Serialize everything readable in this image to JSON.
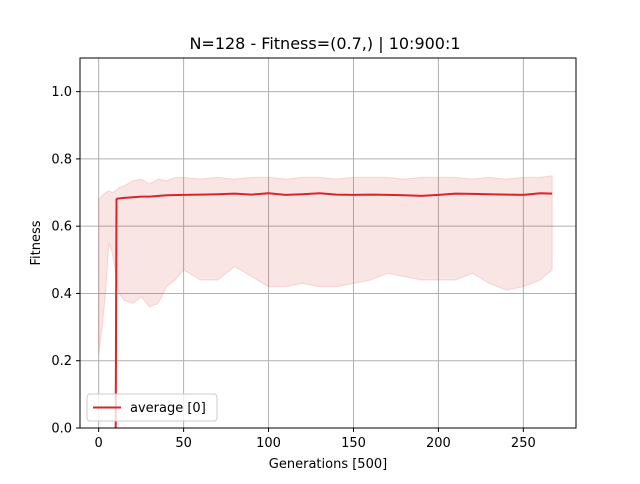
{
  "chart_data": {
    "type": "line",
    "title": "N=128  - Fitness=(0.7,) | 10:900:1",
    "xlabel": "Generations [500]",
    "ylabel": "Fitness",
    "xlim": [
      -11,
      281
    ],
    "ylim": [
      0.0,
      1.1
    ],
    "xticks": [
      0,
      50,
      100,
      150,
      200,
      250
    ],
    "yticks": [
      0.0,
      0.2,
      0.4,
      0.6,
      0.8,
      1.0
    ],
    "xtick_labels": [
      "0",
      "50",
      "100",
      "150",
      "200",
      "250"
    ],
    "ytick_labels": [
      "0.0",
      "0.2",
      "0.4",
      "0.6",
      "0.8",
      "1.0"
    ],
    "grid": true,
    "legend": {
      "placement": "lower-left",
      "entries": [
        "average [0]"
      ]
    },
    "series": [
      {
        "name": "average [0]",
        "color": "#d62728",
        "x": [
          10,
          10.5,
          11,
          15,
          20,
          25,
          30,
          40,
          50,
          60,
          70,
          80,
          90,
          100,
          110,
          120,
          130,
          140,
          150,
          160,
          170,
          180,
          190,
          200,
          210,
          220,
          230,
          240,
          250,
          260,
          267
        ],
        "y": [
          0.0,
          0.68,
          0.682,
          0.684,
          0.686,
          0.688,
          0.688,
          0.692,
          0.693,
          0.694,
          0.695,
          0.697,
          0.694,
          0.698,
          0.693,
          0.695,
          0.698,
          0.694,
          0.693,
          0.694,
          0.693,
          0.692,
          0.69,
          0.693,
          0.697,
          0.696,
          0.695,
          0.694,
          0.693,
          0.698,
          0.697
        ]
      }
    ],
    "band": {
      "color": "#d62728",
      "x": [
        0,
        2,
        4,
        6,
        8,
        10,
        12,
        15,
        20,
        25,
        30,
        35,
        40,
        45,
        50,
        60,
        70,
        80,
        90,
        100,
        110,
        120,
        130,
        140,
        150,
        160,
        170,
        180,
        190,
        200,
        210,
        220,
        230,
        240,
        250,
        260,
        267
      ],
      "upper": [
        0.68,
        0.69,
        0.7,
        0.705,
        0.7,
        0.705,
        0.715,
        0.72,
        0.735,
        0.74,
        0.725,
        0.74,
        0.735,
        0.745,
        0.745,
        0.74,
        0.745,
        0.74,
        0.745,
        0.745,
        0.74,
        0.745,
        0.745,
        0.74,
        0.745,
        0.745,
        0.745,
        0.74,
        0.745,
        0.745,
        0.745,
        0.74,
        0.745,
        0.74,
        0.745,
        0.745,
        0.75
      ],
      "lower": [
        0.22,
        0.3,
        0.4,
        0.55,
        0.52,
        0.46,
        0.4,
        0.38,
        0.37,
        0.39,
        0.36,
        0.37,
        0.42,
        0.44,
        0.47,
        0.44,
        0.44,
        0.48,
        0.45,
        0.42,
        0.42,
        0.43,
        0.42,
        0.42,
        0.43,
        0.44,
        0.46,
        0.45,
        0.44,
        0.44,
        0.44,
        0.46,
        0.43,
        0.41,
        0.42,
        0.44,
        0.47
      ]
    }
  }
}
